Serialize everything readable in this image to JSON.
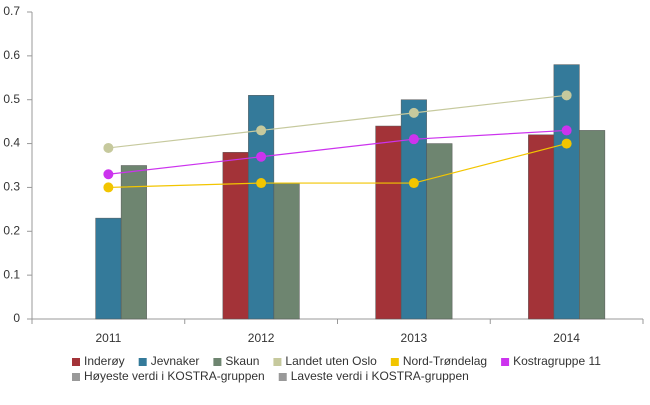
{
  "chart_data": {
    "type": "bar",
    "categories": [
      "2011",
      "2012",
      "2013",
      "2014"
    ],
    "ylim": [
      0,
      0.7
    ],
    "yticks": [
      0,
      0.1,
      0.2,
      0.3,
      0.4,
      0.5,
      0.6,
      0.7
    ],
    "series": [
      {
        "name": "Inderøy",
        "type": "bar",
        "color": "#a33338",
        "values": [
          null,
          0.38,
          0.44,
          0.42
        ]
      },
      {
        "name": "Jevnaker",
        "type": "bar",
        "color": "#347a9a",
        "values": [
          0.23,
          0.51,
          0.5,
          0.58
        ]
      },
      {
        "name": "Skaun",
        "type": "bar",
        "color": "#6e8570",
        "values": [
          0.35,
          0.31,
          0.4,
          0.43
        ]
      },
      {
        "name": "Landet uten Oslo",
        "type": "line",
        "color": "#c6c99d",
        "values": [
          0.39,
          0.43,
          0.47,
          0.51
        ]
      },
      {
        "name": "Nord-Trøndelag",
        "type": "line",
        "color": "#f2c500",
        "values": [
          0.3,
          0.31,
          0.31,
          0.4
        ]
      },
      {
        "name": "Kostragruppe 11",
        "type": "line",
        "color": "#cc33ee",
        "values": [
          0.33,
          0.37,
          0.41,
          0.43
        ]
      },
      {
        "name": "Høyeste verdi i KOSTRA-gruppen",
        "type": "line",
        "color": "#999999",
        "visible": false,
        "values": [
          null,
          null,
          null,
          null
        ]
      },
      {
        "name": "Laveste verdi i KOSTRA-gruppen",
        "type": "line",
        "color": "#999999",
        "visible": false,
        "values": [
          null,
          null,
          null,
          null
        ]
      }
    ]
  }
}
